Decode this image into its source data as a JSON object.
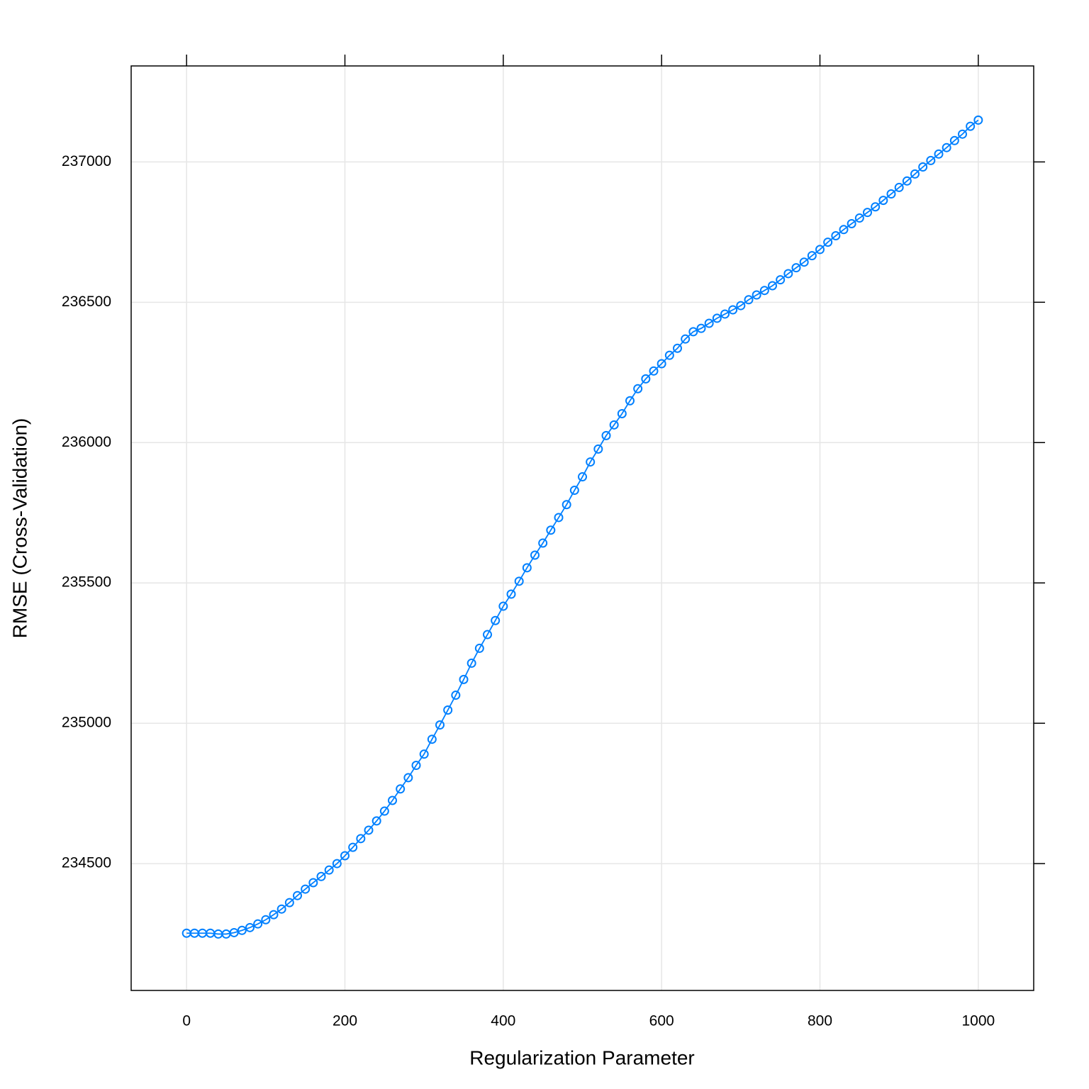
{
  "chart_data": {
    "type": "line",
    "xlabel": "Regularization Parameter",
    "ylabel": "RMSE (Cross-Validation)",
    "x": [
      0,
      10,
      20,
      30,
      40,
      50,
      60,
      70,
      80,
      90,
      100,
      110,
      120,
      130,
      140,
      150,
      160,
      170,
      180,
      190,
      200,
      210,
      220,
      230,
      240,
      250,
      260,
      270,
      280,
      290,
      300,
      310,
      320,
      330,
      340,
      350,
      360,
      370,
      380,
      390,
      400,
      410,
      420,
      430,
      440,
      450,
      460,
      470,
      480,
      490,
      500,
      510,
      520,
      530,
      540,
      550,
      560,
      570,
      580,
      590,
      600,
      610,
      620,
      630,
      640,
      650,
      660,
      670,
      680,
      690,
      700,
      710,
      720,
      730,
      740,
      750,
      760,
      770,
      780,
      790,
      800,
      810,
      820,
      830,
      840,
      850,
      860,
      870,
      880,
      890,
      900,
      910,
      920,
      930,
      940,
      950,
      960,
      970,
      980,
      990,
      1000
    ],
    "series": [
      {
        "name": "RMSE",
        "color": "#0080ff",
        "values": [
          234252,
          234252,
          234252,
          234252,
          234249,
          234249,
          234254,
          234262,
          234272,
          234285,
          234300,
          234318,
          234338,
          234361,
          234386,
          234409,
          234432,
          234454,
          234477,
          234500,
          234528,
          234558,
          234589,
          234619,
          234652,
          234687,
          234725,
          234766,
          234806,
          234850,
          234890,
          234943,
          234994,
          235047,
          235100,
          235156,
          235214,
          235267,
          235316,
          235366,
          235417,
          235460,
          235506,
          235554,
          235599,
          235642,
          235688,
          235733,
          235779,
          235830,
          235878,
          235931,
          235977,
          236025,
          236063,
          236103,
          236149,
          236192,
          236227,
          236255,
          236281,
          236311,
          236336,
          236369,
          236395,
          236407,
          236425,
          236443,
          236458,
          236473,
          236488,
          236509,
          236526,
          236542,
          236559,
          236580,
          236602,
          236623,
          236643,
          236666,
          236688,
          236714,
          236737,
          236759,
          236780,
          236800,
          236820,
          236840,
          236863,
          236886,
          236909,
          236932,
          236957,
          236982,
          237005,
          237028,
          237051,
          237076,
          237099,
          237127,
          237149
        ]
      }
    ],
    "xlim": [
      -70,
      1070
    ],
    "ylim": [
      234048,
      237342
    ],
    "xticks": [
      0,
      200,
      400,
      600,
      800,
      1000
    ],
    "yticks": [
      234500,
      235000,
      235500,
      236000,
      236500,
      237000
    ],
    "grid": true
  }
}
